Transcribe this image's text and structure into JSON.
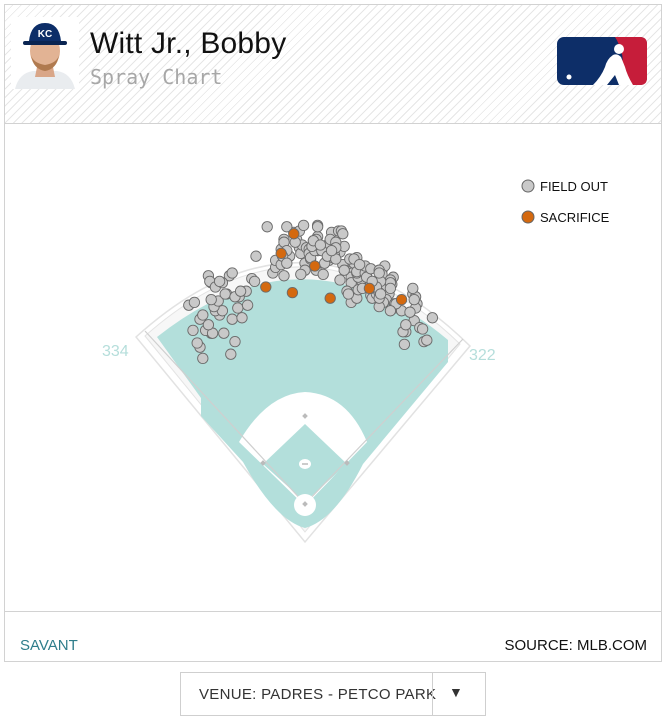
{
  "header": {
    "player_name": "Witt Jr., Bobby",
    "subtitle": "Spray Chart"
  },
  "footer": {
    "savant_link": "SAVANT",
    "source": "SOURCE: MLB.COM"
  },
  "venue_select": {
    "label": "VENUE: PADRES - PETCO PARK",
    "arrow": "▼"
  },
  "colors": {
    "field_out": "#c9c9c9",
    "sacrifice": "#d4690f",
    "turf": "#b3dfdb",
    "brand_blue": "#0d2e68",
    "brand_red": "#c61d3a",
    "link": "#2e7d8b"
  },
  "chart_data": {
    "type": "scatter",
    "title": "",
    "legend": [
      {
        "name": "FIELD OUT",
        "color": "#c9c9c9"
      },
      {
        "name": "SACRIFICE",
        "color": "#d4690f"
      }
    ],
    "legend_placement": "top-right",
    "field_labels": {
      "left_field": "334",
      "right_field": "322"
    },
    "x_range": [
      0,
      250
    ],
    "y_range": [
      0,
      250
    ],
    "series": [
      {
        "name": "FIELD OUT",
        "x": [
          52,
          50,
          72,
          48,
          75,
          58,
          45,
          67,
          54,
          59,
          50,
          56,
          73,
          64,
          80,
          52,
          61,
          77,
          66,
          42,
          60,
          84,
          63,
          58,
          46,
          69,
          78,
          83,
          68,
          58,
          75,
          56,
          79,
          57,
          61,
          71,
          66,
          73,
          64,
          87,
          89,
          90,
          102,
          110,
          104,
          110,
          104,
          108,
          110,
          114,
          108,
          110,
          121,
          122,
          131,
          133,
          119,
          117,
          134,
          134,
          121,
          123,
          112,
          109,
          112,
          126,
          112,
          98,
          125,
          125,
          124,
          130,
          129,
          128,
          134,
          118,
          128,
          134,
          129,
          144,
          133,
          132,
          130,
          122,
          142,
          150,
          139,
          140,
          140,
          144,
          149,
          146,
          145,
          151,
          142,
          137,
          138,
          131,
          136,
          143,
          153,
          152,
          147,
          141,
          158,
          147,
          156,
          152,
          147,
          144,
          160,
          162,
          159,
          173,
          162,
          160,
          158,
          158,
          153,
          165,
          157,
          155,
          150,
          158,
          174,
          169,
          163,
          174,
          166,
          162,
          162,
          160,
          156,
          172,
          162,
          168,
          163,
          172,
          168,
          177,
          169,
          173,
          174,
          164,
          180,
          176,
          182,
          172,
          178,
          182,
          185,
          179,
          180,
          172,
          188,
          186,
          178,
          187,
          185,
          186,
          179,
          178,
          176,
          183,
          181,
          178,
          178,
          173,
          166,
          189,
          189,
          190,
          179,
          194,
          190,
          186,
          197,
          202,
          205,
          195,
          204,
          203,
          204,
          202,
          197,
          186,
          203,
          207,
          200,
          216,
          196,
          210,
          212,
          209
        ],
        "y": [
          104,
          112,
          107,
          115,
          116,
          122,
          124,
          122,
          124,
          122,
          132,
          128,
          132,
          135,
          133,
          135,
          138,
          140,
          138,
          142,
          141,
          142,
          145,
          146,
          144,
          150,
          148,
          152,
          150,
          158,
          148,
          163,
          152,
          159,
          155,
          163,
          158,
          165,
          159,
          161,
          159,
          177,
          165,
          163,
          169,
          177,
          174,
          182,
          189,
          177,
          171,
          187,
          183,
          179,
          188,
          167,
          189,
          194,
          199,
          191,
          195,
          185,
          181,
          177,
          172,
          183,
          198,
          198,
          172,
          167,
          199,
          182,
          175,
          182,
          198,
          187,
          179,
          181,
          176,
          194,
          189,
          181,
          184,
          164,
          174,
          180,
          172,
          182,
          180,
          179,
          195,
          178,
          176,
          195,
          186,
          181,
          164,
          188,
          185,
          189,
          184,
          193,
          187,
          177,
          173,
          183,
          172,
          171,
          175,
          181,
          169,
          170,
          165,
          159,
          176,
          172,
          162,
          158,
          167,
          160,
          175,
          152,
          160,
          144,
          149,
          163,
          162,
          149,
          170,
          147,
          165,
          175,
          150,
          149,
          166,
          165,
          153,
          157,
          170,
          159,
          162,
          147,
          154,
          171,
          167,
          150,
          170,
          168,
          167,
          155,
          159,
          160,
          164,
          154,
          162,
          160,
          151,
          157,
          150,
          158,
          159,
          165,
          155,
          146,
          144,
          141,
          147,
          159,
          154,
          143,
          140,
          141,
          150,
          138,
          143,
          138,
          123,
          150,
          143,
          123,
          148,
          131,
          140,
          154,
          128,
          154,
          146,
          126,
          137,
          133,
          114,
          116,
          117,
          125
        ]
      },
      {
        "name": "SACRIFICE",
        "x": [
          97,
          108,
          116,
          117,
          132,
          143,
          171,
          194
        ],
        "y": [
          155,
          179,
          151,
          193,
          170,
          147,
          154,
          146
        ]
      }
    ]
  }
}
